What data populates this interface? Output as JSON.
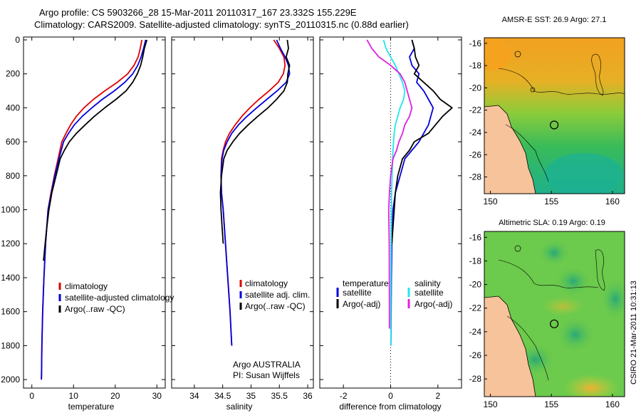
{
  "header": {
    "line1": "Argo profile: CS 5903266_28 15-Mar-2011 20110317_167 23.332S 155.229E",
    "line2": "Climatology: CARS2009. Satellite-adjusted climatology: synTS_20110315.nc (0.88d earlier)"
  },
  "colors": {
    "climatology": "#e00000",
    "satellite": "#0000dd",
    "argo": "#000000",
    "salinity_satellite": "#22e6ee",
    "salinity_argo": "#e020e0",
    "land": "#f7c39b"
  },
  "credit": "CSIRO 21-Mar-2011 10:31:13",
  "depth_ticks": [
    "0",
    "200",
    "400",
    "600",
    "800",
    "1000",
    "1200",
    "1400",
    "1600",
    "1800",
    "2000"
  ],
  "chart_data": [
    {
      "id": "temperature",
      "type": "line",
      "xlabel": "temperature",
      "xlim": [
        -2,
        32
      ],
      "ylim": [
        2050,
        0
      ],
      "xticks": [
        "0",
        "10",
        "20",
        "30"
      ],
      "legend": [
        "climatology",
        "satellite-adjusted climatology",
        "Argo(..raw -QC)"
      ],
      "series": [
        {
          "name": "climatology",
          "color_key": "climatology",
          "x": [
            26.4,
            26.0,
            25.5,
            24.5,
            23.0,
            20.5,
            17.5,
            14.8,
            12.5,
            10.7,
            9.3,
            8.2,
            7.2,
            6.3,
            5.4,
            4.6,
            3.9,
            3.3,
            2.9,
            2.6,
            2.4,
            2.3
          ],
          "y": [
            0,
            50,
            100,
            150,
            200,
            250,
            300,
            350,
            400,
            450,
            500,
            550,
            600,
            700,
            800,
            900,
            1000,
            1200,
            1400,
            1600,
            1800,
            2000
          ]
        },
        {
          "name": "satellite-adjusted climatology",
          "color_key": "satellite",
          "x": [
            27.3,
            26.8,
            26.2,
            25.4,
            24.2,
            22.3,
            19.8,
            16.9,
            14.4,
            12.1,
            10.2,
            8.8,
            7.6,
            6.5,
            5.5,
            4.7,
            3.9,
            3.3,
            2.9,
            2.6,
            2.4,
            2.3
          ],
          "y": [
            0,
            50,
            100,
            150,
            200,
            250,
            300,
            350,
            400,
            450,
            500,
            550,
            600,
            700,
            800,
            900,
            1000,
            1200,
            1400,
            1600,
            1800,
            2000
          ]
        },
        {
          "name": "Argo(..raw -QC)",
          "color_key": "argo",
          "x": [
            27.6,
            27.0,
            26.6,
            26.1,
            25.3,
            24.2,
            22.6,
            20.2,
            17.5,
            15.0,
            12.8,
            10.7,
            9.0,
            7.8,
            6.8,
            5.8,
            4.8,
            4.1,
            3.6,
            3.2,
            2.8
          ],
          "y": [
            0,
            50,
            100,
            150,
            200,
            250,
            300,
            350,
            400,
            450,
            500,
            550,
            600,
            650,
            700,
            800,
            900,
            1000,
            1100,
            1200,
            1300
          ]
        }
      ]
    },
    {
      "id": "salinity",
      "type": "line",
      "xlabel": "salinity",
      "xlim": [
        33.6,
        36.1
      ],
      "ylim": [
        2050,
        0
      ],
      "xticks": [
        "34",
        "34.5",
        "35",
        "35.5",
        "36"
      ],
      "legend": [
        "climatology",
        "satellite adj. clim.",
        "Argo(..raw -QC)"
      ],
      "footnote": [
        "Argo AUSTRALIA",
        "PI: Susan Wijffels"
      ],
      "series": [
        {
          "name": "climatology",
          "color_key": "climatology",
          "x": [
            35.4,
            35.5,
            35.58,
            35.6,
            35.57,
            35.48,
            35.32,
            35.14,
            34.98,
            34.84,
            34.72,
            34.62,
            34.55,
            34.51,
            34.48,
            34.47,
            34.48,
            34.51,
            34.55,
            34.59,
            34.63,
            34.66
          ],
          "y": [
            0,
            50,
            100,
            150,
            200,
            250,
            300,
            350,
            400,
            450,
            500,
            550,
            600,
            650,
            700,
            800,
            900,
            1000,
            1200,
            1400,
            1600,
            1800
          ]
        },
        {
          "name": "satellite adj. clim.",
          "color_key": "satellite",
          "x": [
            35.45,
            35.52,
            35.6,
            35.66,
            35.68,
            35.62,
            35.46,
            35.28,
            35.1,
            34.93,
            34.78,
            34.66,
            34.58,
            34.52,
            34.49,
            34.47,
            34.48,
            34.51,
            34.55,
            34.59,
            34.63,
            34.66
          ],
          "y": [
            0,
            50,
            100,
            150,
            200,
            250,
            300,
            350,
            400,
            450,
            500,
            550,
            600,
            650,
            700,
            800,
            900,
            1000,
            1200,
            1400,
            1600,
            1800
          ]
        },
        {
          "name": "Argo(..raw -QC)",
          "color_key": "argo",
          "x": [
            35.64,
            35.66,
            35.62,
            35.68,
            35.65,
            35.64,
            35.58,
            35.45,
            35.3,
            35.12,
            34.95,
            34.8,
            34.68,
            34.58,
            34.52,
            34.48,
            34.46,
            34.47,
            34.49,
            34.51
          ],
          "y": [
            0,
            50,
            100,
            150,
            200,
            250,
            300,
            350,
            400,
            450,
            500,
            550,
            600,
            650,
            700,
            800,
            900,
            1000,
            1100,
            1200
          ]
        }
      ]
    },
    {
      "id": "difference",
      "type": "line",
      "xlabel": "difference from climatology",
      "xlim": [
        -3,
        3
      ],
      "ylim": [
        2050,
        0
      ],
      "xticks": [
        "-2",
        "0",
        "2"
      ],
      "legend_groups": [
        {
          "title": "temperature",
          "items": [
            "satellite",
            "Argo(-adj)"
          ]
        },
        {
          "title": "salinity",
          "items": [
            "satellite",
            "Argo(-adj)"
          ]
        }
      ],
      "series": [
        {
          "name": "temperature satellite",
          "color_key": "satellite",
          "x": [
            0.9,
            1.0,
            0.8,
            0.9,
            1.2,
            1.1,
            1.4,
            1.6,
            1.8,
            1.7,
            1.6,
            1.4,
            1.2,
            0.9,
            0.6,
            0.4,
            0.2,
            0.1,
            0.05,
            0.03,
            0.02,
            0.01
          ],
          "y": [
            0,
            50,
            100,
            150,
            200,
            250,
            300,
            350,
            400,
            450,
            500,
            550,
            600,
            650,
            700,
            800,
            900,
            1000,
            1200,
            1400,
            1600,
            1800
          ]
        },
        {
          "name": "temperature Argo(-adj)",
          "color_key": "argo",
          "x": [
            0.9,
            1.0,
            1.05,
            1.2,
            1.0,
            1.4,
            1.8,
            2.1,
            2.6,
            2.2,
            1.9,
            1.6,
            1.0,
            0.8,
            0.5,
            0.3,
            0.2,
            0.15,
            0.1,
            0.05
          ],
          "y": [
            0,
            50,
            100,
            150,
            200,
            250,
            300,
            350,
            400,
            450,
            500,
            550,
            600,
            650,
            700,
            800,
            900,
            1000,
            1100,
            1200
          ]
        },
        {
          "name": "salinity satellite",
          "color_key": "salinity_satellite",
          "x": [
            -0.3,
            -0.2,
            0.0,
            0.2,
            0.35,
            0.5,
            0.6,
            0.55,
            0.4,
            0.3,
            0.2,
            0.15,
            0.12,
            0.1,
            0.08,
            0.06,
            0.04,
            0.03,
            0.02,
            0.01,
            0.01
          ],
          "y": [
            0,
            50,
            100,
            150,
            200,
            250,
            300,
            350,
            400,
            450,
            500,
            550,
            600,
            650,
            700,
            800,
            900,
            1000,
            1200,
            1400,
            1800
          ]
        },
        {
          "name": "salinity Argo(-adj)",
          "color_key": "salinity_argo",
          "x": [
            -1.0,
            -0.8,
            -0.5,
            0.0,
            0.4,
            0.6,
            0.7,
            0.8,
            0.9,
            0.8,
            0.6,
            0.5,
            0.35,
            0.25,
            0.1,
            0.0,
            -0.05,
            -0.08,
            -0.06,
            -0.05
          ],
          "y": [
            0,
            50,
            100,
            150,
            200,
            250,
            300,
            350,
            400,
            450,
            500,
            550,
            600,
            650,
            700,
            800,
            900,
            1000,
            1200,
            1700
          ]
        }
      ]
    },
    {
      "id": "sst_map",
      "type": "heatmap",
      "title": "AMSR-E SST: 26.9 Argo: 27.1",
      "xlim": [
        149.5,
        161
      ],
      "ylim": [
        -29.5,
        -15.5
      ],
      "xticks": [
        "150",
        "155",
        "160"
      ],
      "yticks": [
        "-16",
        "-18",
        "-20",
        "-22",
        "-24",
        "-26",
        "-28"
      ],
      "profile_location": {
        "lon": 155.229,
        "lat": -23.332
      }
    },
    {
      "id": "sla_map",
      "type": "heatmap",
      "title": "Altimetric SLA: 0.19 Argo: 0.19",
      "xlim": [
        149.5,
        161
      ],
      "ylim": [
        -29.5,
        -15.5
      ],
      "xticks": [
        "150",
        "155",
        "160"
      ],
      "yticks": [
        "-16",
        "-18",
        "-20",
        "-22",
        "-24",
        "-26",
        "-28"
      ],
      "profile_location": {
        "lon": 155.229,
        "lat": -23.332
      }
    }
  ]
}
